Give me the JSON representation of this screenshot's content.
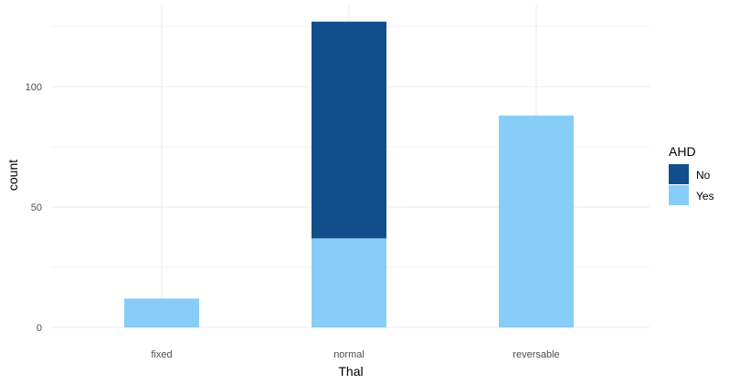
{
  "chart_data": {
    "type": "bar",
    "stacked": true,
    "categories": [
      "fixed",
      "normal",
      "reversable"
    ],
    "series": [
      {
        "name": "No",
        "values": [
          0,
          90,
          0
        ],
        "color": "#114e8b"
      },
      {
        "name": "Yes",
        "values": [
          12,
          37,
          88
        ],
        "color": "#88cdf8"
      }
    ],
    "xlabel": "Thal",
    "ylabel": "count",
    "ylim": [
      0,
      127
    ],
    "yticks": [
      0,
      50,
      100
    ],
    "grid": true,
    "legend": {
      "title": "AHD",
      "position": "right"
    }
  }
}
